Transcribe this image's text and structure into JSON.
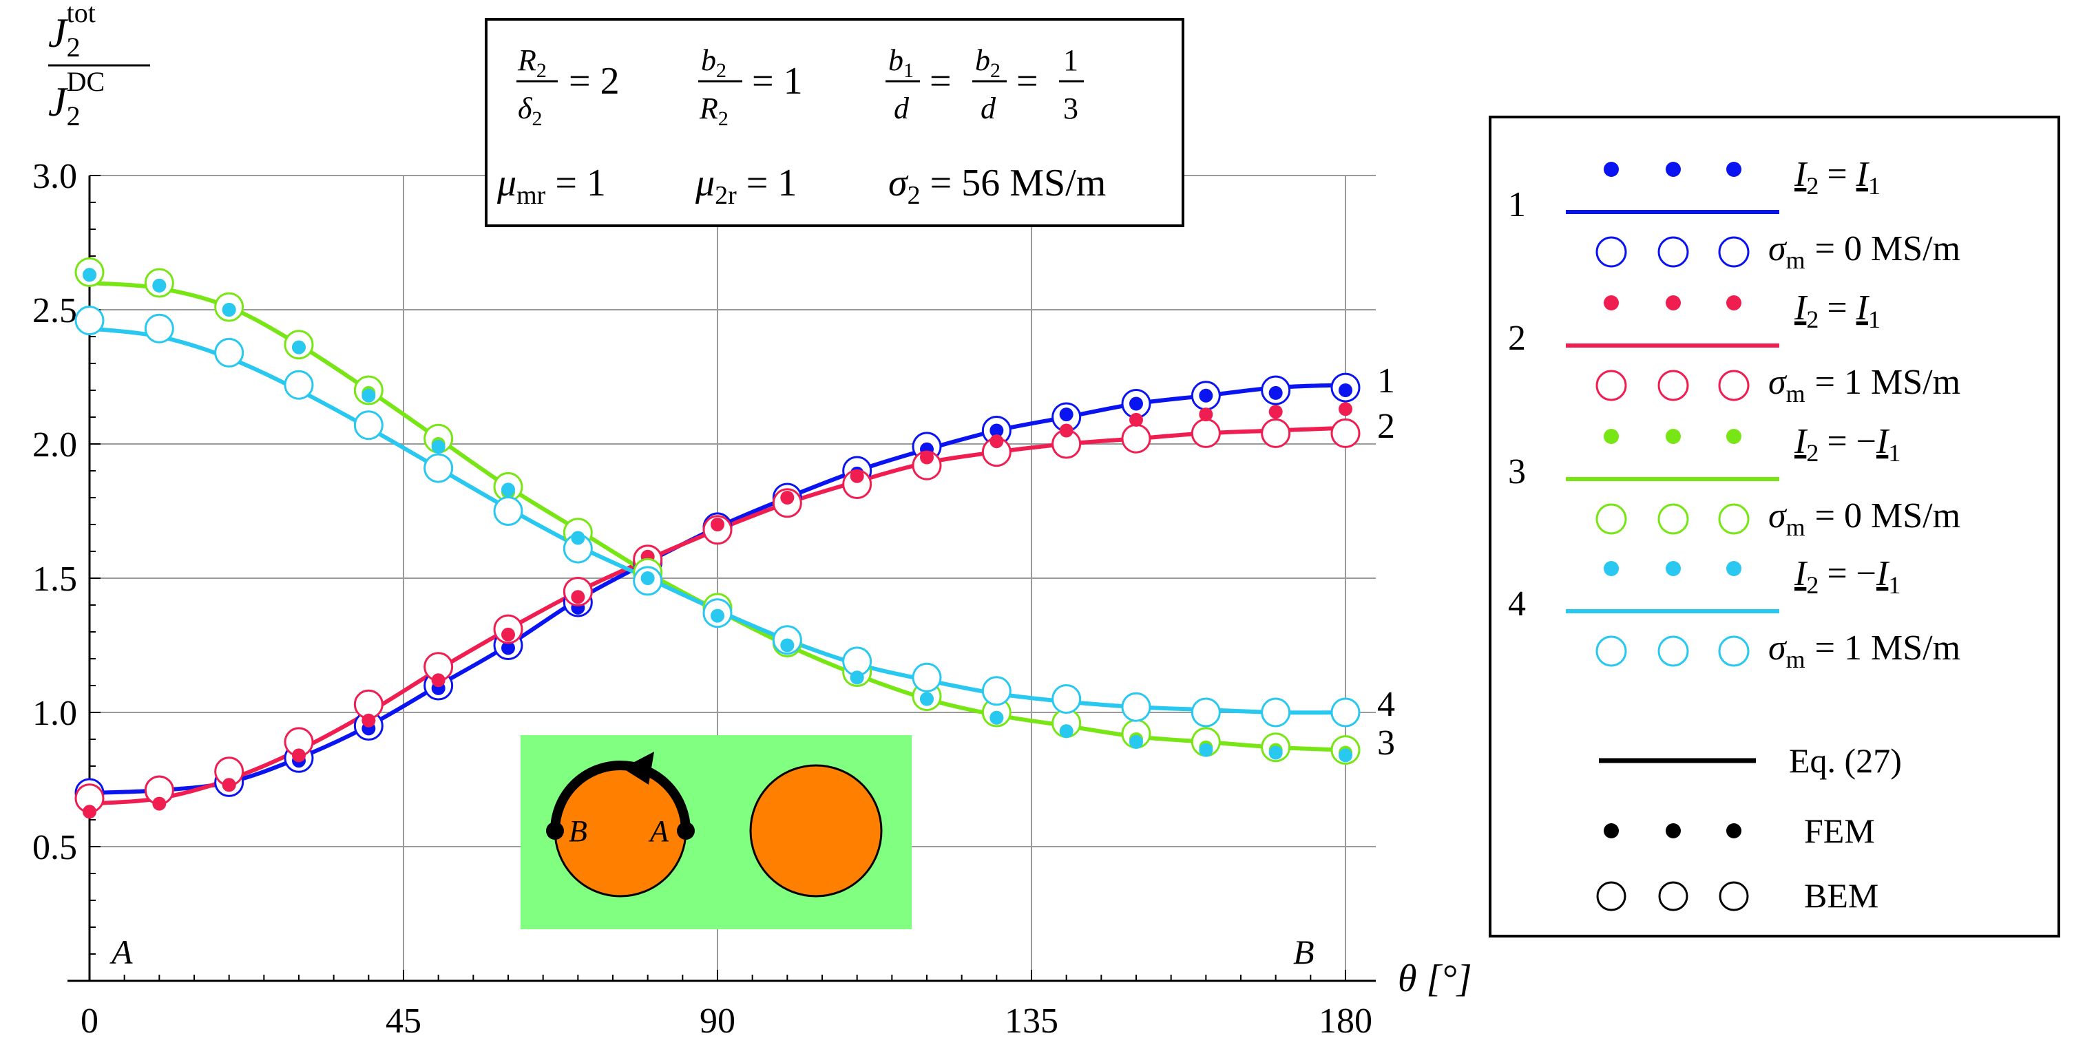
{
  "chart_data": {
    "type": "line",
    "xlabel": "θ [°]",
    "ylabel": {
      "numer_main": "J",
      "numer_sub": "2",
      "numer_sup": "tot",
      "denom_main": "J",
      "denom_sub": "2",
      "denom_sup": "DC"
    },
    "xlim": [
      -4,
      184
    ],
    "ylim": [
      0,
      3.0
    ],
    "xticks": [
      0,
      45,
      90,
      135,
      180
    ],
    "xtick_labels": [
      "0",
      "45",
      "90",
      "135",
      "180"
    ],
    "yticks": [
      0.5,
      1.0,
      1.5,
      2.0,
      2.5,
      3.0
    ],
    "ytick_labels": [
      "0.5",
      "1.0",
      "1.5",
      "2.0",
      "2.5",
      "3.0"
    ],
    "grid": true,
    "series": [
      {
        "name": "1",
        "color": "#0a14f0",
        "curve": [
          0.7,
          0.71,
          0.74,
          0.83,
          0.95,
          1.1,
          1.25,
          1.42,
          1.56,
          1.69,
          1.8,
          1.9,
          1.98,
          2.05,
          2.1,
          2.15,
          2.18,
          2.21,
          2.22
        ],
        "fem": [
          0.68,
          0.69,
          0.73,
          0.82,
          0.94,
          1.09,
          1.24,
          1.39,
          1.54,
          1.68,
          1.79,
          1.89,
          1.98,
          2.05,
          2.11,
          2.15,
          2.18,
          2.19,
          2.2
        ],
        "bem": [
          0.7,
          0.71,
          0.74,
          0.83,
          0.95,
          1.1,
          1.25,
          1.41,
          1.56,
          1.69,
          1.8,
          1.9,
          1.99,
          2.05,
          2.1,
          2.15,
          2.18,
          2.2,
          2.21
        ]
      },
      {
        "name": "2",
        "color": "#f01e50",
        "curve": [
          0.66,
          0.68,
          0.75,
          0.86,
          1.0,
          1.16,
          1.31,
          1.45,
          1.57,
          1.68,
          1.78,
          1.86,
          1.93,
          1.97,
          2.0,
          2.02,
          2.04,
          2.05,
          2.06
        ],
        "fem": [
          0.63,
          0.66,
          0.73,
          0.84,
          0.97,
          1.12,
          1.29,
          1.43,
          1.58,
          1.7,
          1.8,
          1.88,
          1.95,
          2.01,
          2.05,
          2.09,
          2.11,
          2.12,
          2.13
        ],
        "bem": [
          0.68,
          0.71,
          0.78,
          0.89,
          1.03,
          1.17,
          1.31,
          1.45,
          1.57,
          1.68,
          1.78,
          1.85,
          1.92,
          1.97,
          2.0,
          2.02,
          2.04,
          2.04,
          2.04
        ]
      },
      {
        "name": "3",
        "color": "#78e614",
        "curve": [
          2.6,
          2.58,
          2.51,
          2.37,
          2.2,
          2.02,
          1.84,
          1.68,
          1.52,
          1.38,
          1.25,
          1.14,
          1.05,
          0.99,
          0.95,
          0.91,
          0.89,
          0.87,
          0.86
        ],
        "fem": [
          2.63,
          2.59,
          2.5,
          2.36,
          2.19,
          2.0,
          1.82,
          1.65,
          1.51,
          1.38,
          1.25,
          1.13,
          1.05,
          0.98,
          0.93,
          0.9,
          0.87,
          0.86,
          0.85
        ],
        "bem": [
          2.64,
          2.6,
          2.51,
          2.37,
          2.2,
          2.02,
          1.84,
          1.67,
          1.52,
          1.39,
          1.26,
          1.15,
          1.06,
          1.0,
          0.96,
          0.92,
          0.89,
          0.87,
          0.86
        ]
      },
      {
        "name": "4",
        "color": "#28c8f0",
        "curve": [
          2.43,
          2.4,
          2.32,
          2.2,
          2.06,
          1.91,
          1.76,
          1.62,
          1.5,
          1.38,
          1.27,
          1.18,
          1.12,
          1.07,
          1.04,
          1.02,
          1.01,
          1.0,
          1.0
        ],
        "fem": [
          2.63,
          2.59,
          2.5,
          2.36,
          2.18,
          1.99,
          1.83,
          1.65,
          1.5,
          1.36,
          1.25,
          1.13,
          1.05,
          0.98,
          0.93,
          0.89,
          0.86,
          0.85,
          0.84
        ],
        "bem": [
          2.46,
          2.43,
          2.34,
          2.22,
          2.07,
          1.91,
          1.75,
          1.61,
          1.49,
          1.37,
          1.27,
          1.19,
          1.13,
          1.08,
          1.05,
          1.02,
          1.0,
          1.0,
          1.0
        ]
      }
    ],
    "x_points": [
      0,
      10,
      20,
      30,
      40,
      50,
      60,
      70,
      80,
      90,
      100,
      110,
      120,
      130,
      140,
      150,
      160,
      170,
      180
    ],
    "curve_end_labels": [
      "1",
      "2",
      "3",
      "4"
    ],
    "corner_labels": {
      "left": "A",
      "right": "B"
    }
  },
  "params_box": {
    "row1": [
      {
        "num_main": "R",
        "num_sub": "2",
        "den_main": "δ",
        "den_sub": "2",
        "rhs": "= 2"
      },
      {
        "num_main": "b",
        "num_sub": "2",
        "den_main": "R",
        "den_sub": "2",
        "rhs": "= 1"
      },
      {
        "num_main": "b",
        "num_sub": "1",
        "den_main": "d",
        "den_sub": "",
        "rhs": "="
      },
      {
        "num_main": "b",
        "num_sub": "2",
        "den_main": "d",
        "den_sub": "",
        "rhs": "="
      },
      {
        "num_main": "1",
        "num_sub": "",
        "den_main": "3",
        "den_sub": "",
        "rhs": ""
      }
    ],
    "row2": [
      {
        "main": "μ",
        "sub": "mr",
        "rhs": "= 1"
      },
      {
        "main": "μ",
        "sub": "2r",
        "rhs": "= 1"
      },
      {
        "main": "σ",
        "sub": "2",
        "rhs": "= 56 MS/m"
      }
    ]
  },
  "legend": {
    "entries": [
      {
        "num": "1",
        "current_lhs": "I",
        "current_lhs_sub": "2",
        "current_rhs": "= I",
        "current_rhs_sub": "1",
        "sigma_sub": "m",
        "sigma_val": "= 0 MS/m"
      },
      {
        "num": "2",
        "current_lhs": "I",
        "current_lhs_sub": "2",
        "current_rhs": "= I",
        "current_rhs_sub": "1",
        "sigma_sub": "m",
        "sigma_val": "= 1 MS/m"
      },
      {
        "num": "3",
        "current_lhs": "I",
        "current_lhs_sub": "2",
        "current_rhs": "= −I",
        "current_rhs_sub": "1",
        "sigma_sub": "m",
        "sigma_val": "= 0 MS/m"
      },
      {
        "num": "4",
        "current_lhs": "I",
        "current_lhs_sub": "2",
        "current_rhs": "= −I",
        "current_rhs_sub": "1",
        "sigma_sub": "m",
        "sigma_val": "= 1 MS/m"
      }
    ],
    "sigma_main": "σ",
    "method_labels": [
      "Eq. (27)",
      "FEM",
      "BEM"
    ]
  },
  "inset": {
    "point_b": "B",
    "point_a": "A"
  }
}
